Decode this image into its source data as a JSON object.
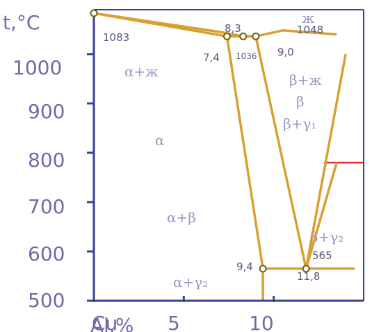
{
  "chart_data": {
    "type": "phase-diagram",
    "title": "",
    "xlabel": "Al,%",
    "ylabel": "t,°C",
    "x_tick_labels": [
      "Cu",
      "5",
      "10"
    ],
    "x_ticks": [
      0,
      5,
      10
    ],
    "y_ticks": [
      500,
      600,
      700,
      800,
      900,
      1000
    ],
    "y_tick_labels": [
      "500",
      "600",
      "700",
      "800",
      "900",
      "1000"
    ],
    "xlim": [
      0,
      15
    ],
    "ylim": [
      500,
      1090
    ],
    "grid": false,
    "colors": {
      "axes": "#3b3f9a",
      "lines": "#d8a030",
      "points": "#ffffff",
      "point_stroke": "#7a5a10",
      "red_marker": "#e8262a",
      "text": "#6f6aa8",
      "arrows": "#141414"
    },
    "lines": [
      {
        "name": "",
        "points": [
          [
            0,
            1083
          ],
          [
            7.4,
            1036
          ],
          [
            8.3,
            1036
          ],
          [
            9.0,
            1036
          ],
          [
            10.5,
            1048
          ],
          [
            13.5,
            1040
          ]
        ]
      },
      {
        "name": "",
        "points": [
          [
            0,
            1083
          ],
          [
            7.0,
            1045
          ],
          [
            8.3,
            1036
          ]
        ]
      },
      {
        "name": "",
        "points": [
          [
            7.4,
            1036
          ],
          [
            9.4,
            565
          ],
          [
            9.4,
            500
          ]
        ]
      },
      {
        "name": "",
        "points": [
          [
            9.0,
            1036
          ],
          [
            11.8,
            565
          ],
          [
            14.0,
            1000
          ]
        ]
      },
      {
        "name": "",
        "points": [
          [
            9.4,
            565
          ],
          [
            14.5,
            565
          ]
        ]
      },
      {
        "name": "",
        "points": [
          [
            11.8,
            565
          ],
          [
            13.5,
            780
          ]
        ]
      }
    ],
    "points": [
      {
        "x": 0,
        "y": 1083,
        "label": "1083"
      },
      {
        "x": 7.4,
        "y": 1036,
        "label": "7,4"
      },
      {
        "x": 8.3,
        "y": 1036,
        "label": "8,3"
      },
      {
        "x": 9.0,
        "y": 1036,
        "label": "9,0"
      },
      {
        "x": 9.4,
        "y": 565,
        "label": "9,4"
      },
      {
        "x": 11.8,
        "y": 565,
        "label": "11,8"
      }
    ],
    "temperature_labels": [
      "1036",
      "1048",
      "565"
    ],
    "phase_regions": [
      "ж",
      "α+ж",
      "β+ж",
      "β",
      "β+γ₁",
      "α",
      "α+β",
      "β+γ₂",
      "α+γ₂"
    ],
    "phase_label_values": {
      "liquid": "ж",
      "alpha_liquid": "α+ж",
      "beta_liquid": "β+ж",
      "beta": "β",
      "beta_gamma1": "β+γ₁",
      "alpha": "α",
      "alpha_beta": "α+β",
      "beta_gamma2": "β+γ₂",
      "alpha_gamma2": "α+γ₂"
    }
  }
}
